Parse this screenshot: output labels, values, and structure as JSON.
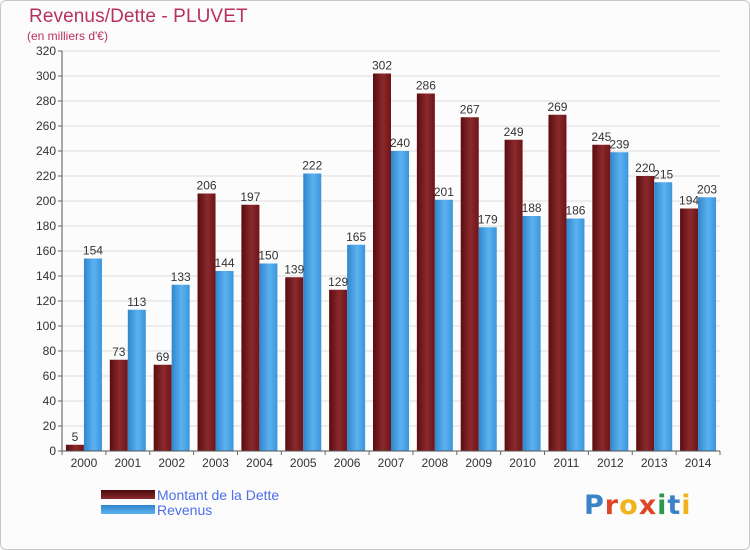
{
  "title": "Revenus/Dette - PLUVET",
  "subtitle": "(en milliers d'€)",
  "logo_text": "Proxiti",
  "logo_colors": [
    "#3b83c8",
    "#e0452a",
    "#f2b21b",
    "#e0452a",
    "#2a9a4a",
    "#3b83c8",
    "#f2b21b"
  ],
  "chart_data": {
    "type": "bar",
    "categories": [
      "2000",
      "2001",
      "2002",
      "2003",
      "2004",
      "2005",
      "2006",
      "2007",
      "2008",
      "2009",
      "2010",
      "2011",
      "2012",
      "2013",
      "2014"
    ],
    "series": [
      {
        "name": "Montant de la Dette",
        "values": [
          5,
          73,
          69,
          206,
          197,
          139,
          129,
          302,
          286,
          267,
          249,
          269,
          245,
          220,
          194
        ],
        "color": "#7a1a1e"
      },
      {
        "name": "Revenus",
        "values": [
          154,
          113,
          133,
          144,
          150,
          222,
          165,
          240,
          201,
          179,
          188,
          186,
          239,
          215,
          203
        ],
        "color": "#3f9fe3"
      }
    ],
    "ylim": [
      0,
      320
    ],
    "yticks": [
      0,
      20,
      40,
      60,
      80,
      100,
      120,
      140,
      160,
      180,
      200,
      220,
      240,
      260,
      280,
      300,
      320
    ],
    "grid": true,
    "legend_position": "bottom-left"
  }
}
